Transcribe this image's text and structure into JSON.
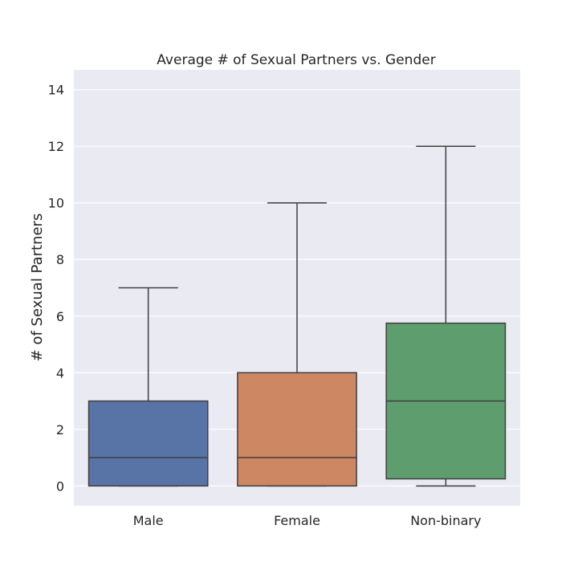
{
  "chart_data": {
    "type": "box",
    "title": "Average # of Sexual Partners vs. Gender",
    "xlabel": "",
    "ylabel": "# of Sexual Partners",
    "ylim": [
      -0.7,
      14.7
    ],
    "yticks": [
      0,
      2,
      4,
      6,
      8,
      10,
      12,
      14
    ],
    "grid": true,
    "background": "#eaeaf2",
    "categories": [
      "Male",
      "Female",
      "Non-binary"
    ],
    "boxes": [
      {
        "category": "Male",
        "whisker_low": 0,
        "q1": 0,
        "median": 1,
        "q3": 3,
        "whisker_high": 7,
        "color": "#5874a6"
      },
      {
        "category": "Female",
        "whisker_low": 0,
        "q1": 0,
        "median": 1,
        "q3": 4,
        "whisker_high": 10,
        "color": "#cd8762"
      },
      {
        "category": "Non-binary",
        "whisker_low": 0,
        "q1": 0.25,
        "median": 3,
        "q3": 5.75,
        "whisker_high": 12,
        "color": "#5e9e6e"
      }
    ]
  }
}
